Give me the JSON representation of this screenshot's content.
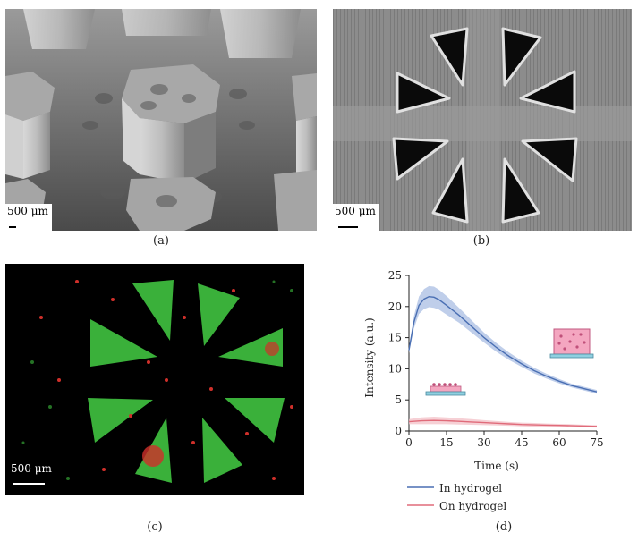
{
  "panels": {
    "a": {
      "caption": "(a)",
      "scalebar": "500 μm"
    },
    "b": {
      "caption": "(b)",
      "scalebar": "500 μm"
    },
    "c": {
      "caption": "(c)",
      "scalebar": "500 μm"
    },
    "d": {
      "caption": "(d)"
    }
  },
  "colors": {
    "in_hydrogel": "#4a6fb3",
    "in_hydrogel_band": "#a9bde3",
    "on_hydrogel": "#e06b7a",
    "on_hydrogel_band": "#f3c0c7",
    "fluor_green": "#3fbf3f",
    "fluor_red": "#d0302a"
  },
  "chart_data": {
    "type": "line",
    "xlabel": "Time (s)",
    "ylabel": "Intensity (a.u.)",
    "xlim": [
      0,
      75
    ],
    "ylim": [
      0,
      25
    ],
    "xticks": [
      0,
      15,
      30,
      45,
      60,
      75
    ],
    "yticks": [
      0,
      5,
      10,
      15,
      20,
      25
    ],
    "grid": false,
    "legend_position": "bottom",
    "series": [
      {
        "name": "In hydrogel",
        "x": [
          0,
          2,
          4,
          6,
          8,
          10,
          12,
          15,
          20,
          25,
          30,
          35,
          40,
          45,
          50,
          55,
          60,
          65,
          70,
          75
        ],
        "values": [
          13,
          17.5,
          20.2,
          21.2,
          21.6,
          21.5,
          21.1,
          20.2,
          18.6,
          16.8,
          15.0,
          13.4,
          12.0,
          10.8,
          9.7,
          8.8,
          8.0,
          7.3,
          6.8,
          6.3
        ],
        "band": [
          0.5,
          1.0,
          1.4,
          1.6,
          1.7,
          1.7,
          1.6,
          1.5,
          1.2,
          1.0,
          0.8,
          0.7,
          0.6,
          0.5,
          0.45,
          0.4,
          0.35,
          0.3,
          0.3,
          0.3
        ]
      },
      {
        "name": "On hydrogel",
        "x": [
          0,
          5,
          10,
          15,
          20,
          25,
          30,
          35,
          40,
          45,
          50,
          55,
          60,
          65,
          70,
          75
        ],
        "values": [
          1.5,
          1.65,
          1.7,
          1.65,
          1.55,
          1.45,
          1.35,
          1.25,
          1.15,
          1.05,
          1.0,
          0.95,
          0.9,
          0.85,
          0.8,
          0.75
        ],
        "band": [
          0.4,
          0.55,
          0.6,
          0.55,
          0.5,
          0.45,
          0.4,
          0.35,
          0.3,
          0.3,
          0.3,
          0.25,
          0.25,
          0.25,
          0.2,
          0.2
        ]
      }
    ]
  }
}
